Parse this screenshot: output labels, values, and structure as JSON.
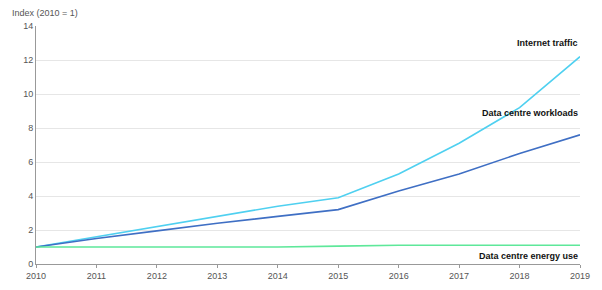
{
  "chart_data": {
    "type": "line",
    "y_label": "Index (2010 = 1)",
    "x": [
      2010,
      2011,
      2012,
      2013,
      2014,
      2015,
      2016,
      2017,
      2018,
      2019
    ],
    "xlim": [
      2010,
      2019
    ],
    "xticks": [
      2010,
      2011,
      2012,
      2013,
      2014,
      2015,
      2016,
      2017,
      2018,
      2019
    ],
    "ylim": [
      0,
      14
    ],
    "yticks": [
      0,
      2,
      4,
      6,
      8,
      10,
      12,
      14
    ],
    "grid": true,
    "series": [
      {
        "name": "Internet traffic",
        "color": "#4fd0f0",
        "values": [
          1,
          1.6,
          2.2,
          2.8,
          3.4,
          3.9,
          5.3,
          7.1,
          9.2,
          12.2
        ]
      },
      {
        "name": "Data centre workloads",
        "color": "#3f6fc4",
        "values": [
          1,
          1.5,
          1.95,
          2.4,
          2.8,
          3.2,
          4.3,
          5.3,
          6.5,
          7.6
        ]
      },
      {
        "name": "Data centre energy use",
        "color": "#5ee89a",
        "values": [
          1,
          1,
          1,
          1,
          1,
          1.05,
          1.1,
          1.1,
          1.1,
          1.1
        ]
      }
    ]
  }
}
